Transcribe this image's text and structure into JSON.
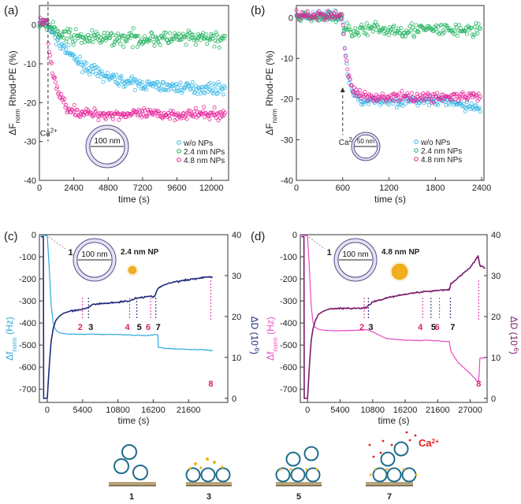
{
  "panels": {
    "a": {
      "label": "(a)",
      "chart_data": {
        "type": "scatter",
        "xlabel": "time (s)",
        "ylabel_main": "ΔF",
        "ylabel_sub": "norm",
        "ylabel_rest": " Rhod-PE (%)",
        "xlim": [
          0,
          13200
        ],
        "ylim": [
          -40,
          5
        ],
        "xticks": [
          0,
          2400,
          4800,
          7200,
          9600,
          12000
        ],
        "yticks": [
          0,
          -10,
          -20,
          -30,
          -40
        ],
        "series": [
          {
            "name": "w/o NPs",
            "color": "#35b6e6",
            "plateau": -16.5,
            "tau": 2500
          },
          {
            "name": "2.4 nm NPs",
            "color": "#1fb25a",
            "plateau": -3.5,
            "tau": 800
          },
          {
            "name": "4.8 nm NPs",
            "color": "#e8229a",
            "plateau": -23,
            "tau": 600
          }
        ],
        "annotation": "Ca",
        "annotation_sup": "2+",
        "ca_time": 600,
        "vesicle_label": "100 nm"
      }
    },
    "b": {
      "label": "(b)",
      "chart_data": {
        "type": "scatter",
        "xlabel": "time (s)",
        "ylabel_main": "ΔF",
        "ylabel_sub": "norm",
        "ylabel_rest": " Rhod-PE (%)",
        "xlim": [
          0,
          2430
        ],
        "ylim": [
          -40,
          3
        ],
        "xticks": [
          0,
          600,
          1200,
          1800,
          2400
        ],
        "yticks": [
          0,
          -10,
          -20,
          -30,
          -40
        ],
        "series": [
          {
            "name": "w/o NPs",
            "color": "#35b6e6",
            "plateau": -20.5
          },
          {
            "name": "2.4 nm NPs",
            "color": "#1fb25a",
            "plateau": -3
          },
          {
            "name": "4.8 nm NPs",
            "color": "#e8229a",
            "plateau": -19.5
          }
        ],
        "annotation": "Ca",
        "annotation_sup": "2+",
        "ca_time": 600,
        "vesicle_label": "50 nm"
      }
    },
    "c": {
      "label": "(c)",
      "chart_data": {
        "type": "line",
        "xlabel": "time (s)",
        "y1_main": "Δf",
        "y1_sub": "norm",
        "y1_rest": " (Hz)",
        "y2_label": "ΔD (10",
        "y2_sup": "-6",
        "y2_close": ")",
        "xlim": [
          -1200,
          27600
        ],
        "y1lim": [
          -760,
          0
        ],
        "y2lim": [
          -1,
          40
        ],
        "xticks": [
          0,
          5400,
          10800,
          16200,
          21600
        ],
        "y1ticks": [
          0,
          -100,
          -200,
          -300,
          -400,
          -500,
          -600,
          -700
        ],
        "y2ticks": [
          0,
          10,
          20,
          30,
          40
        ],
        "series": [
          {
            "name": "Δf",
            "axis": "left",
            "color": "#2ea8dc",
            "x": [
              0,
              300,
              600,
              900,
              1200,
              1600,
              2000,
              2500,
              3000,
              3600,
              4200,
              5400,
              6000,
              6500,
              8000,
              10800,
              13000,
              15000,
              16000,
              16500,
              16900,
              17000,
              18000,
              21600,
              24000,
              25000,
              25300
            ],
            "y": [
              -5,
              -150,
              -320,
              -400,
              -428,
              -440,
              -445,
              -448,
              -450,
              -451,
              -451,
              -452,
              -452,
              -450,
              -452,
              -452,
              -455,
              -457,
              -455,
              -452,
              -455,
              -510,
              -515,
              -520,
              -522,
              -525,
              -523
            ]
          },
          {
            "name": "ΔD",
            "axis": "right",
            "color": "#1d2a7c",
            "x": [
              0,
              350,
              600,
              900,
              1300,
              1800,
              2500,
              3500,
              5400,
              6300,
              6800,
              8000,
              10800,
              12500,
              13500,
              15000,
              16400,
              16800,
              17500,
              19000,
              21600,
              24000,
              25300
            ],
            "y": [
              0,
              9,
              14,
              17,
              19,
              20,
              20.8,
              21.3,
              21.8,
              22.2,
              22.9,
              23.1,
              23.5,
              23.8,
              24.5,
              24.8,
              24.9,
              26.5,
              27.5,
              28.3,
              29.0,
              29.6,
              29.7
            ]
          }
        ],
        "markers": [
          {
            "label": "2",
            "x": 5400,
            "color": "#e8229a"
          },
          {
            "label": "3",
            "x": 6300,
            "color": "#1d2a7c"
          },
          {
            "label": "4",
            "x": 12600,
            "color": "#e8229a"
          },
          {
            "label": "5",
            "x": 13700,
            "color": "#1d2a7c"
          },
          {
            "label": "6",
            "x": 15800,
            "color": "#e8229a"
          },
          {
            "label": "7",
            "x": 16600,
            "color": "#1d2a7c"
          },
          {
            "label": "8",
            "x": 25000,
            "color": "#e8229a"
          }
        ],
        "point_label": "1",
        "vesicle_label": "100 nm",
        "np_label": "2.4 nm NP"
      }
    },
    "d": {
      "label": "(d)",
      "chart_data": {
        "type": "line",
        "xlabel": "time (s)",
        "y1_main": "Δf",
        "y1_sub": "norm",
        "y1_rest": " (Hz)",
        "y2_label": "ΔD (10",
        "y2_sup": "-6",
        "y2_close": ")",
        "xlim": [
          -1200,
          29800
        ],
        "y1lim": [
          -760,
          0
        ],
        "y2lim": [
          -1,
          40
        ],
        "xticks": [
          0,
          5400,
          10800,
          16200,
          21600,
          27000
        ],
        "y1ticks": [
          0,
          -100,
          -200,
          -300,
          -400,
          -500,
          -600,
          -700
        ],
        "y2ticks": [
          0,
          10,
          20,
          30,
          40
        ],
        "series": [
          {
            "name": "Δf",
            "axis": "left",
            "color": "#e84bc4",
            "x": [
              0,
              300,
              600,
              900,
              1200,
              1600,
              2000,
              2800,
              4000,
              5400,
              8000,
              9500,
              10000,
              10800,
              13000,
              16200,
              19000,
              19500,
              21000,
              23000,
              23500,
              23800,
              25000,
              27000,
              28000,
              28400,
              28600,
              29500
            ],
            "y": [
              -5,
              -150,
              -320,
              -395,
              -418,
              -425,
              -430,
              -433,
              -435,
              -435,
              -433,
              -432,
              -430,
              -440,
              -470,
              -478,
              -480,
              -478,
              -480,
              -484,
              -483,
              -530,
              -580,
              -630,
              -660,
              -665,
              -560,
              -558
            ]
          },
          {
            "name": "ΔD",
            "axis": "right",
            "color": "#7b1a6e",
            "x": [
              0,
              350,
              600,
              900,
              1300,
              1800,
              2500,
              3500,
              5400,
              8000,
              9800,
              10200,
              10800,
              13000,
              16200,
              19000,
              21000,
              23500,
              23800,
              25000,
              27000,
              28000,
              28300,
              28600,
              29500
            ],
            "y": [
              0,
              9,
              14,
              17,
              19,
              20.5,
              21.2,
              21.8,
              22.0,
              22.0,
              22.1,
              22.8,
              23.5,
              24.5,
              25.5,
              26.0,
              26.3,
              26.6,
              28.0,
              29.5,
              32.0,
              34.0,
              34.8,
              32.5,
              31.8
            ]
          }
        ],
        "markers": [
          {
            "label": "2",
            "x": 9400,
            "color": "#e8229a"
          },
          {
            "label": "3",
            "x": 10100,
            "color": "#1d2a7c"
          },
          {
            "label": "4",
            "x": 19100,
            "color": "#e8229a"
          },
          {
            "label": "5",
            "x": 20500,
            "color": "#1d2a7c"
          },
          {
            "label": "6",
            "x": 21900,
            "color": "#e8229a"
          },
          {
            "label": "7",
            "x": 23700,
            "color": "#1d2a7c"
          },
          {
            "label": "8",
            "x": 28400,
            "color": "#e8229a"
          }
        ],
        "point_label": "1",
        "vesicle_label": "100 nm",
        "np_label": "4.8 nm NP"
      }
    }
  },
  "schematics": [
    {
      "label": "1"
    },
    {
      "label": "3"
    },
    {
      "label": "5"
    },
    {
      "label": "7",
      "ion_label": "Ca",
      "ion_sup": "2+"
    }
  ],
  "colors": {
    "axis": "#333333",
    "vesicle_fill": "#e4e0f1",
    "vesicle_stroke": "#5a4f8a",
    "np_gold": "#f2b01e",
    "ion_red": "#e0201a",
    "bead_stroke": "#1f6e8c",
    "substrate": "#b8a27a"
  }
}
